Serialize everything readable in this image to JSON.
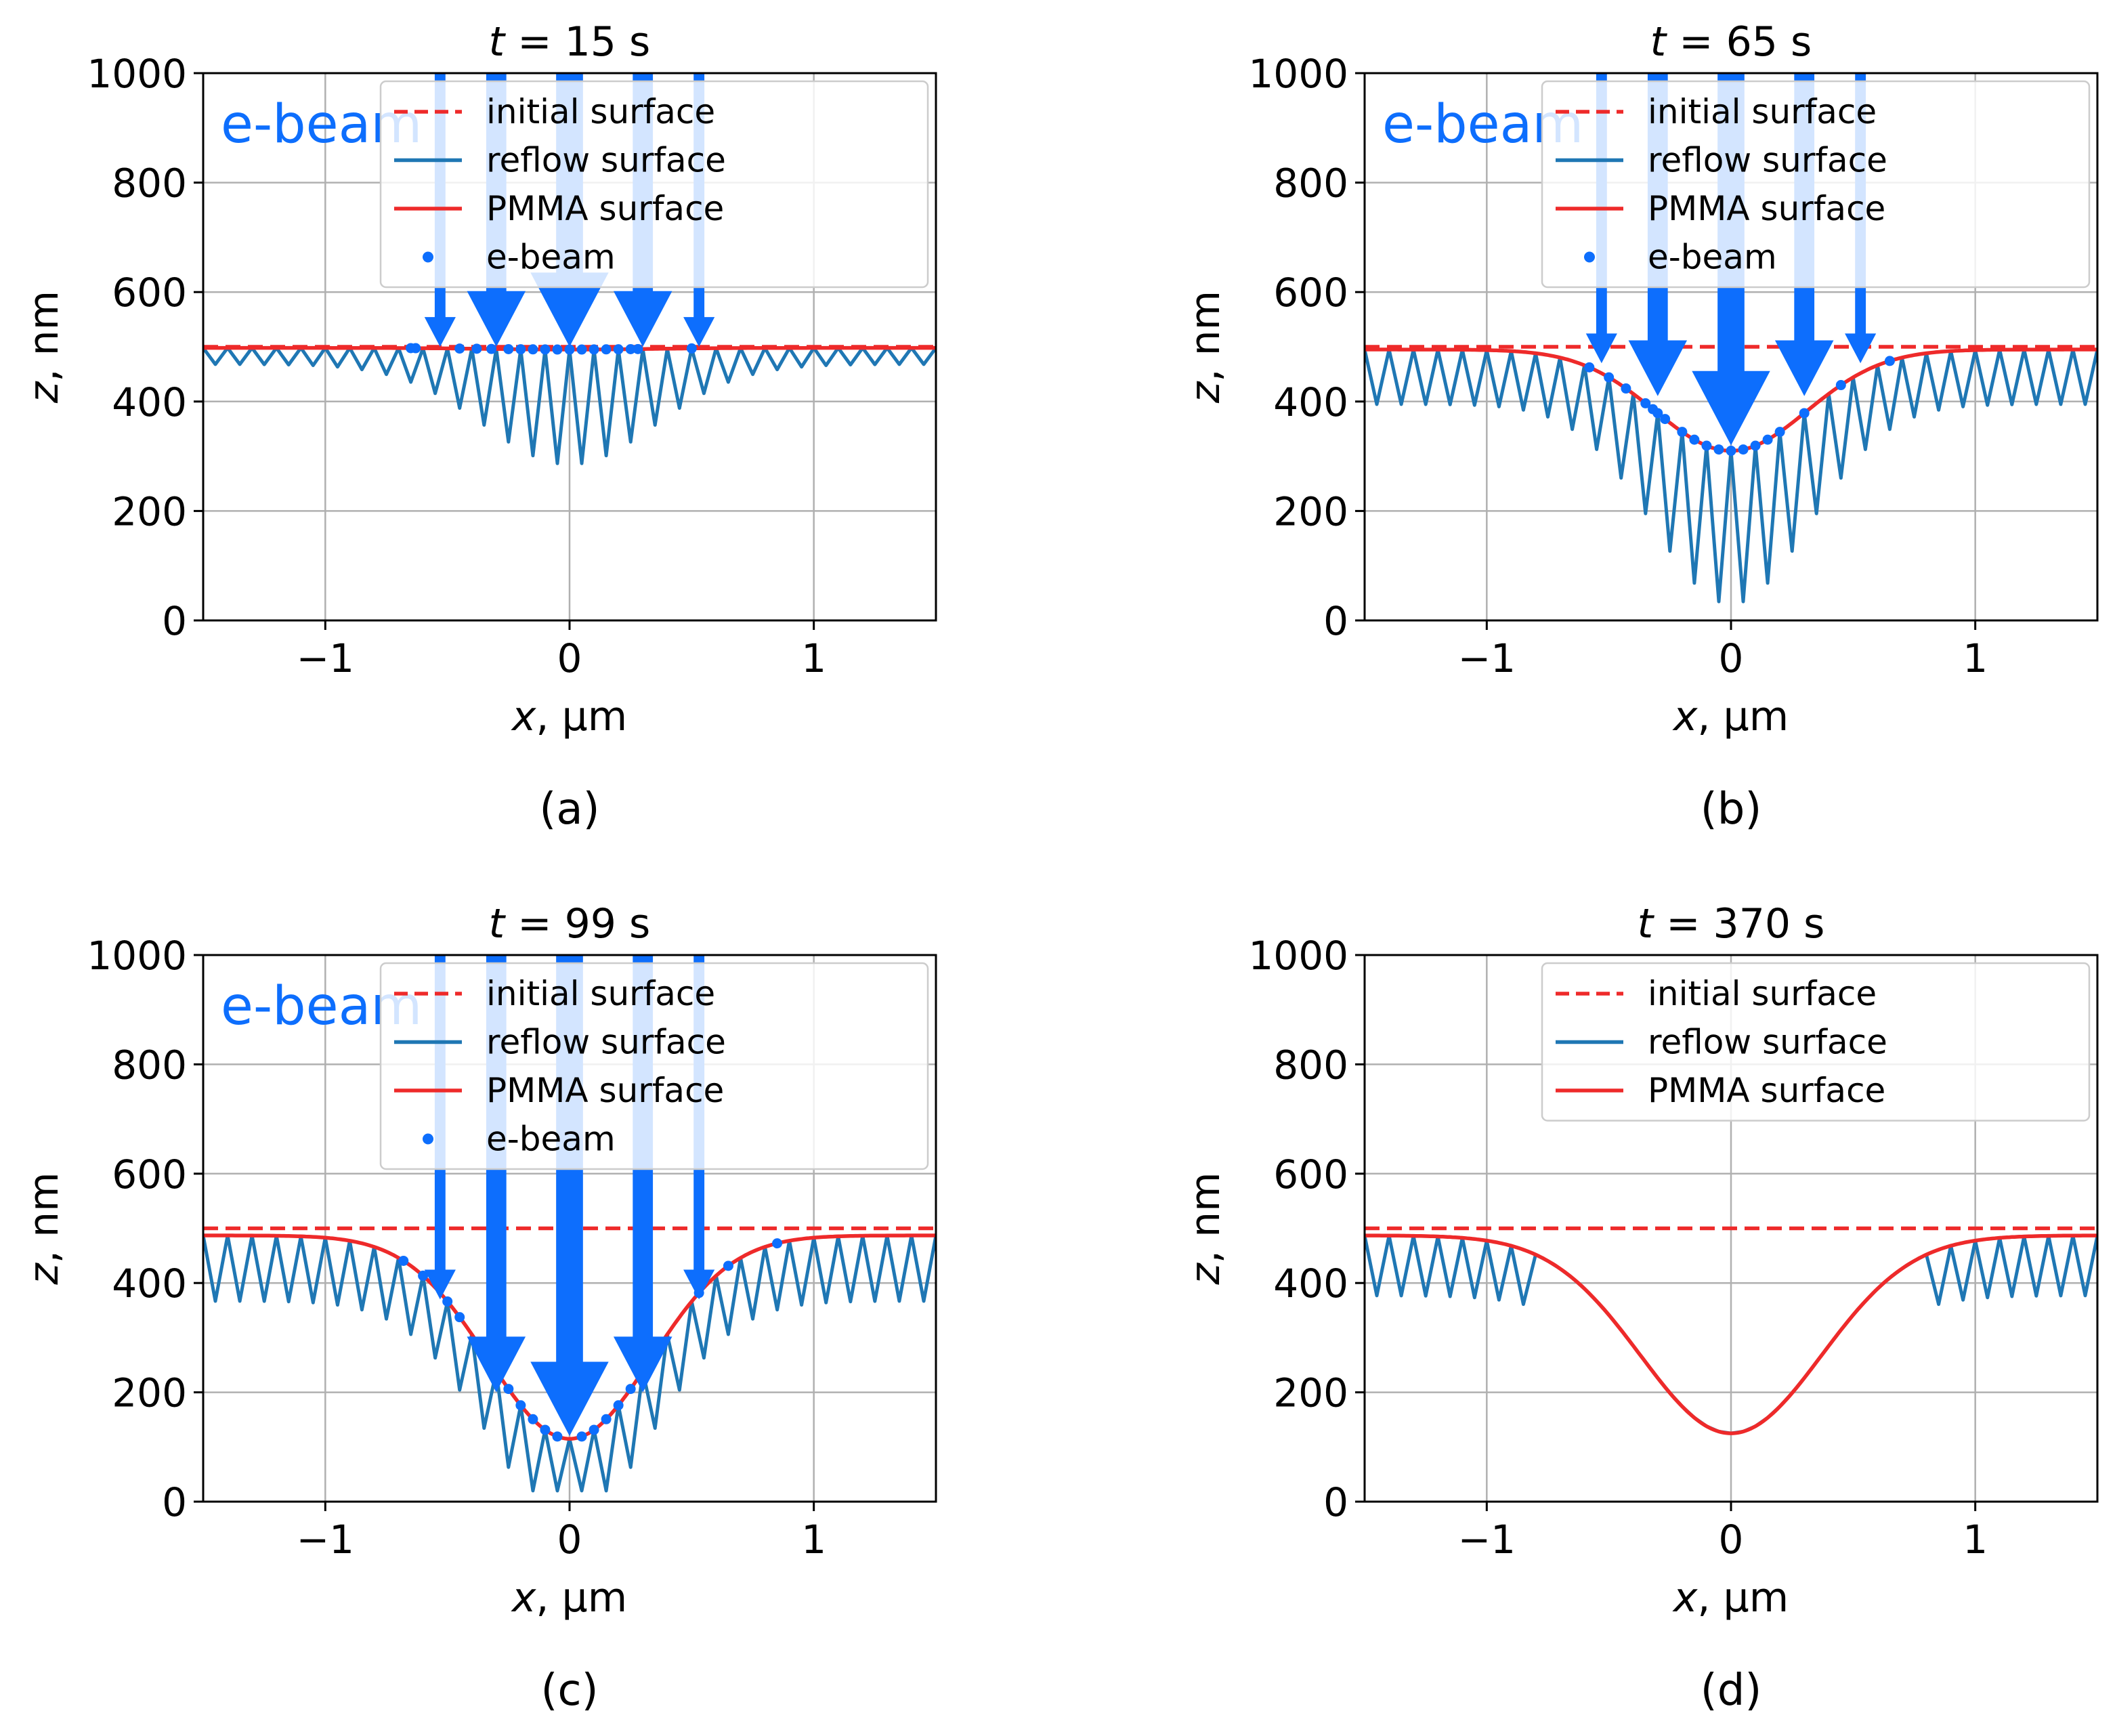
{
  "colors": {
    "initial": "#ee2a2a",
    "reflow": "#1f77b4",
    "pmma": "#ee2a2a",
    "ebeam": "#0d6efd",
    "grid": "#b0b0b0",
    "axis": "#000000"
  },
  "chart_data": [
    {
      "type": "line",
      "panel_label": "(a)",
      "title_var": "t",
      "title_rest": " = 15 s",
      "xlabel_var": "x",
      "xlabel_rest": ", µm",
      "ylabel_var": "z",
      "ylabel_rest": ", nm",
      "xlim": [
        -1.5,
        1.5
      ],
      "ylim": [
        0,
        1000
      ],
      "xticks": [
        -1,
        0,
        1
      ],
      "xtick_labels": [
        "−1",
        "0",
        "1"
      ],
      "yticks": [
        0,
        200,
        400,
        600,
        800,
        1000
      ],
      "ytick_labels": [
        "0",
        "200",
        "400",
        "600",
        "800",
        "1000"
      ],
      "grid": true,
      "legend_position": "top-right",
      "legend": [
        "initial surface",
        "reflow surface",
        "PMMA surface",
        "e-beam"
      ],
      "annotation": "e-beam",
      "initial_surface": 500,
      "center_z": 495,
      "plateau_z": 498,
      "pit_half_width": 0.45,
      "zigzag_amplitude_edge": 30,
      "zigzag_amplitude_center": 210,
      "zigzag_period": 0.1,
      "ebeam_points_x": [
        -0.65,
        -0.63,
        -0.45,
        -0.38,
        -0.32,
        -0.25,
        -0.2,
        -0.15,
        -0.1,
        -0.05,
        0.0,
        0.05,
        0.1,
        0.15,
        0.2,
        0.25,
        0.28,
        0.5
      ],
      "arrows": [
        {
          "x": -0.53,
          "width": 0.08,
          "tip_z": 500
        },
        {
          "x": -0.3,
          "width": 0.15,
          "tip_z": 500
        },
        {
          "x": 0.0,
          "width": 0.2,
          "tip_z": 500
        },
        {
          "x": 0.3,
          "width": 0.15,
          "tip_z": 500
        },
        {
          "x": 0.53,
          "width": 0.08,
          "tip_z": 500
        }
      ]
    },
    {
      "type": "line",
      "panel_label": "(b)",
      "title_var": "t",
      "title_rest": " = 65 s",
      "xlabel_var": "x",
      "xlabel_rest": ", µm",
      "ylabel_var": "z",
      "ylabel_rest": ", nm",
      "xlim": [
        -1.5,
        1.5
      ],
      "ylim": [
        0,
        1000
      ],
      "xticks": [
        -1,
        0,
        1
      ],
      "xtick_labels": [
        "−1",
        "0",
        "1"
      ],
      "yticks": [
        0,
        200,
        400,
        600,
        800,
        1000
      ],
      "ytick_labels": [
        "0",
        "200",
        "400",
        "600",
        "800",
        "1000"
      ],
      "grid": true,
      "legend_position": "top-right",
      "legend": [
        "initial surface",
        "reflow surface",
        "PMMA surface",
        "e-beam"
      ],
      "annotation": "e-beam",
      "initial_surface": 500,
      "center_z": 310,
      "plateau_z": 495,
      "pit_half_width": 0.42,
      "zigzag_amplitude_edge": 100,
      "zigzag_amplitude_center": 280,
      "zigzag_period": 0.1,
      "ebeam_points_x": [
        -0.58,
        -0.5,
        -0.43,
        -0.35,
        -0.32,
        -0.3,
        -0.27,
        -0.2,
        -0.15,
        -0.1,
        -0.05,
        0.0,
        0.05,
        0.1,
        0.15,
        0.2,
        0.3,
        0.45,
        0.65
      ],
      "arrows": [
        {
          "x": -0.53,
          "width": 0.08,
          "tip_z": 470
        },
        {
          "x": -0.3,
          "width": 0.15,
          "tip_z": 410
        },
        {
          "x": 0.0,
          "width": 0.2,
          "tip_z": 320
        },
        {
          "x": 0.3,
          "width": 0.15,
          "tip_z": 410
        },
        {
          "x": 0.53,
          "width": 0.08,
          "tip_z": 470
        }
      ]
    },
    {
      "type": "line",
      "panel_label": "(c)",
      "title_var": "t",
      "title_rest": " = 99 s",
      "xlabel_var": "x",
      "xlabel_rest": ", µm",
      "ylabel_var": "z",
      "ylabel_rest": ", nm",
      "xlim": [
        -1.5,
        1.5
      ],
      "ylim": [
        0,
        1000
      ],
      "xticks": [
        -1,
        0,
        1
      ],
      "xtick_labels": [
        "−1",
        "0",
        "1"
      ],
      "yticks": [
        0,
        200,
        400,
        600,
        800,
        1000
      ],
      "ytick_labels": [
        "0",
        "200",
        "400",
        "600",
        "800",
        "1000"
      ],
      "grid": true,
      "legend_position": "top-right",
      "legend": [
        "initial surface",
        "reflow surface",
        "PMMA surface",
        "e-beam"
      ],
      "annotation": "e-beam",
      "initial_surface": 500,
      "center_z": 115,
      "plateau_z": 487,
      "pit_half_width": 0.45,
      "zigzag_amplitude_edge": 120,
      "zigzag_amplitude_center": 150,
      "zigzag_period": 0.1,
      "ebeam_points_x": [
        -0.68,
        -0.6,
        -0.5,
        -0.45,
        -0.35,
        -0.3,
        -0.25,
        -0.2,
        -0.15,
        -0.1,
        -0.05,
        0.05,
        0.1,
        0.15,
        0.2,
        0.25,
        0.3,
        0.35,
        0.53,
        0.65,
        0.85
      ],
      "arrows": [
        {
          "x": -0.53,
          "width": 0.08,
          "tip_z": 370
        },
        {
          "x": -0.3,
          "width": 0.15,
          "tip_z": 200
        },
        {
          "x": 0.0,
          "width": 0.2,
          "tip_z": 120
        },
        {
          "x": 0.3,
          "width": 0.15,
          "tip_z": 200
        },
        {
          "x": 0.53,
          "width": 0.08,
          "tip_z": 370
        }
      ]
    },
    {
      "type": "line",
      "panel_label": "(d)",
      "title_var": "t",
      "title_rest": " = 370 s",
      "xlabel_var": "x",
      "xlabel_rest": ", µm",
      "ylabel_var": "z",
      "ylabel_rest": ", nm",
      "xlim": [
        -1.5,
        1.5
      ],
      "ylim": [
        0,
        1000
      ],
      "xticks": [
        -1,
        0,
        1
      ],
      "xtick_labels": [
        "−1",
        "0",
        "1"
      ],
      "yticks": [
        0,
        200,
        400,
        600,
        800,
        1000
      ],
      "ytick_labels": [
        "0",
        "200",
        "400",
        "600",
        "800",
        "1000"
      ],
      "grid": true,
      "legend_position": "top-right",
      "legend": [
        "initial surface",
        "reflow surface",
        "PMMA surface"
      ],
      "annotation": "",
      "initial_surface": 500,
      "center_z": 125,
      "plateau_z": 487,
      "pit_half_width": 0.5,
      "zigzag_amplitude_edge": 110,
      "zigzag_amplitude_center": 0,
      "zigzag_period": 0.1,
      "ebeam_points_x": [],
      "arrows": []
    }
  ]
}
